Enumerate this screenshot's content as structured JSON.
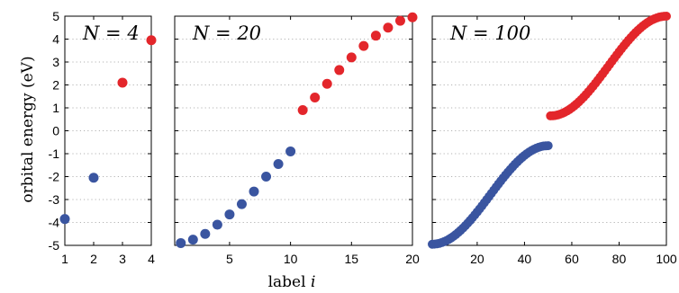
{
  "colors": {
    "occupied": "#3a55a0",
    "unoccupied": "#e3262b",
    "grid": "#9a9a9a"
  },
  "axes": {
    "ylabel": "orbital energy (eV)",
    "xlabel_text": "label ",
    "xlabel_var": "i"
  },
  "chart_data": [
    {
      "type": "scatter",
      "title": "N = 4",
      "ylim": [
        -5,
        5
      ],
      "xlim": [
        1,
        4
      ],
      "xticks": [
        1,
        2,
        3,
        4
      ],
      "yticks": [
        -5,
        -4,
        -3,
        -2,
        -1,
        0,
        1,
        2,
        3,
        4,
        5
      ],
      "grid": true,
      "series": [
        {
          "x": [
            1,
            2
          ],
          "y": [
            -3.85,
            -2.05
          ],
          "color": "#3a55a0"
        },
        {
          "x": [
            3,
            4
          ],
          "y": [
            2.1,
            3.95
          ],
          "color": "#e3262b"
        }
      ]
    },
    {
      "type": "scatter",
      "title": "N = 20",
      "ylim": [
        -5,
        5
      ],
      "xlim": [
        0.5,
        20
      ],
      "xticks": [
        5,
        10,
        15,
        20
      ],
      "yticks": [
        -5,
        -4,
        -3,
        -2,
        -1,
        0,
        1,
        2,
        3,
        4,
        5
      ],
      "grid": true,
      "series": [
        {
          "x": [
            1,
            2,
            3,
            4,
            5,
            6,
            7,
            8,
            9,
            10
          ],
          "y": [
            -4.9,
            -4.75,
            -4.5,
            -4.1,
            -3.65,
            -3.2,
            -2.65,
            -2.0,
            -1.45,
            -0.9
          ],
          "color": "#3a55a0"
        },
        {
          "x": [
            11,
            12,
            13,
            14,
            15,
            16,
            17,
            18,
            19,
            20
          ],
          "y": [
            0.9,
            1.45,
            2.05,
            2.65,
            3.2,
            3.7,
            4.15,
            4.5,
            4.8,
            4.95
          ],
          "color": "#e3262b"
        }
      ]
    },
    {
      "type": "scatter",
      "title": "N = 100",
      "ylim": [
        -5,
        5
      ],
      "xlim": [
        1,
        100
      ],
      "xticks": [
        20,
        40,
        60,
        80,
        100
      ],
      "yticks": [
        -5,
        -4,
        -3,
        -2,
        -1,
        0,
        1,
        2,
        3,
        4,
        5
      ],
      "grid": true,
      "series": [
        {
          "x_range": [
            1,
            50
          ],
          "y_start": -4.95,
          "y_end": -0.65,
          "color": "#3a55a0"
        },
        {
          "x_range": [
            51,
            100
          ],
          "y_start": 0.65,
          "y_end": 5.0,
          "color": "#e3262b"
        }
      ]
    }
  ]
}
